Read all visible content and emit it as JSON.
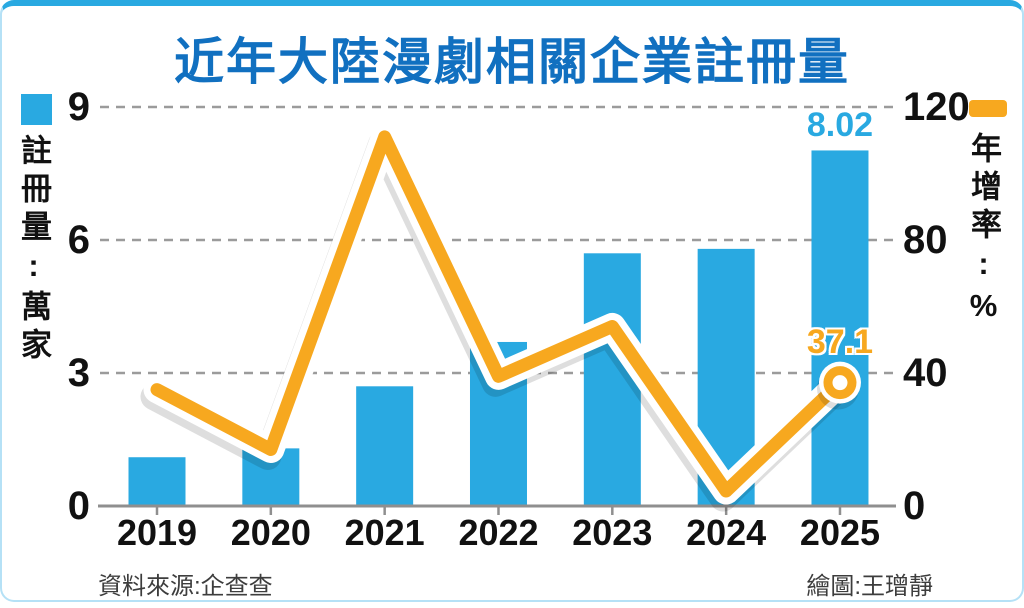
{
  "chart_data": {
    "type": "combo-bar-line",
    "title": "近年大陸漫劇相關企業註冊量",
    "categories": [
      "2019",
      "2020",
      "2021",
      "2022",
      "2023",
      "2024",
      "2025"
    ],
    "series": [
      {
        "name": "註冊量:萬家",
        "type": "bar",
        "axis": "left",
        "color": "#29a9e1",
        "values": [
          1.1,
          1.3,
          2.7,
          3.7,
          5.7,
          5.8,
          8.02
        ]
      },
      {
        "name": "年增率:%",
        "type": "line",
        "axis": "right",
        "color": "#f7a81f",
        "values": [
          35,
          17,
          111,
          39,
          54,
          4.5,
          37.1
        ]
      }
    ],
    "left_axis": {
      "title": "註冊量:萬家",
      "ticks": [
        0,
        3,
        6,
        9
      ],
      "range": [
        0,
        9
      ]
    },
    "right_axis": {
      "title": "年增率:%",
      "ticks": [
        0,
        40,
        80,
        120
      ],
      "range": [
        0,
        120
      ]
    },
    "grid": "dashed-horizontal",
    "legend_position": "top-corners",
    "annotations": {
      "bar_label": {
        "category": "2025",
        "index": 6,
        "text": "8.02"
      },
      "line_label": {
        "category": "2025",
        "index": 6,
        "text": "37.1"
      }
    },
    "source": "資料來源:企查查",
    "credit": "繪圖:王璔靜",
    "colors": {
      "title": "#1170c0",
      "bar": "#29a9e1",
      "line": "#f7a81f",
      "grid": "#9b9b9b",
      "axis": "#8f8f8f",
      "text": "#111111",
      "border": "#b5e1f6"
    }
  }
}
